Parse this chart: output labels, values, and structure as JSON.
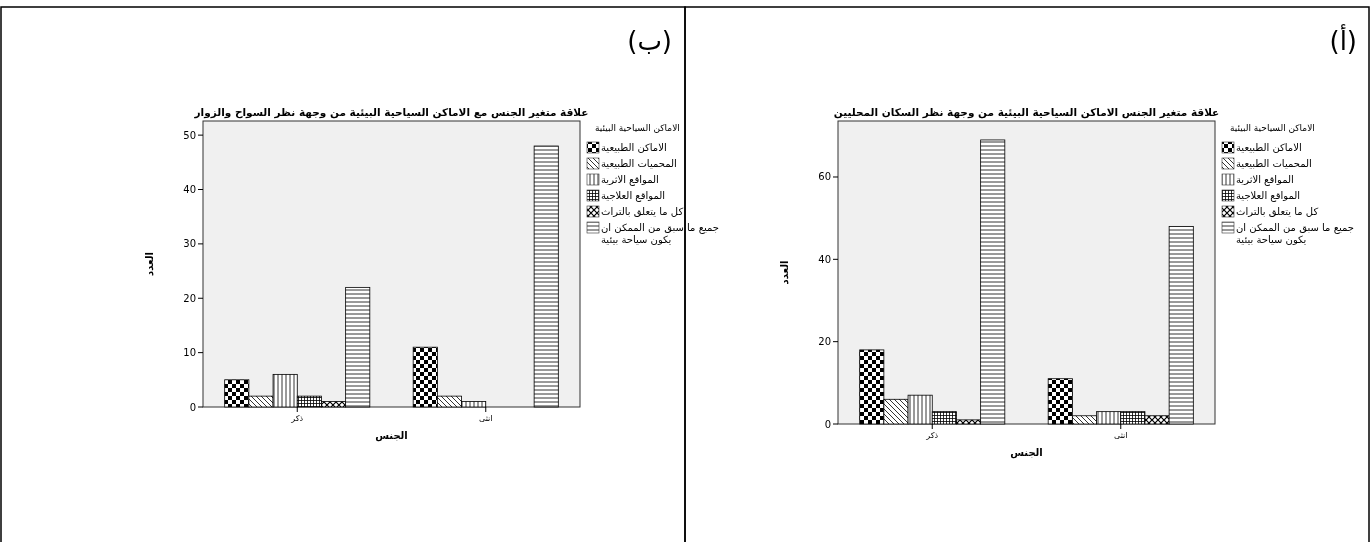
{
  "chart_data": [
    {
      "type": "bar",
      "title": "علاقة متغير الجنس الاماكن السياحية البيئية من وجهة نظر السكان المحليين",
      "xlabel": "الجنس",
      "ylabel": "العدد",
      "legend_title": "الاماكن السياحية البيئية",
      "annotations": [
        "(أ)"
      ],
      "legend": "right",
      "categories": [
        "ذكر",
        "انثى"
      ],
      "ylim": [
        0,
        73.6
      ],
      "yticks": [
        0,
        20,
        40,
        60
      ],
      "series": [
        {
          "name": "الاماكن الطبيعية",
          "color": "#000000",
          "values": [
            18,
            11
          ]
        },
        {
          "name": "المحميات الطبيعية",
          "color": "#000000",
          "values": [
            6,
            2
          ]
        },
        {
          "name": "المواقع الاثرية",
          "color": "#000000",
          "values": [
            7,
            3
          ]
        },
        {
          "name": "المواقع العلاجية",
          "color": "#000000",
          "values": [
            3,
            3
          ]
        },
        {
          "name": "كل ما يتعلق بالتراث",
          "color": "#000000",
          "values": [
            1,
            2
          ]
        },
        {
          "name": "جميع ما سبق من الممكن ان يكون سياحة بيئية",
          "color": "#000000",
          "values": [
            69,
            48
          ]
        }
      ]
    },
    {
      "type": "bar",
      "title": "علاقة متغير الجنس مع الاماكن السياحية البيئية من وجهة نظر السواح والزوار",
      "xlabel": "الجنس",
      "ylabel": "العدد",
      "legend_title": "الاماكن السياحية البيئية",
      "annotations": [
        "(ب)"
      ],
      "legend": "right",
      "categories": [
        "ذكر",
        "انثى"
      ],
      "ylim": [
        0,
        52.6
      ],
      "yticks": [
        0,
        10,
        20,
        30,
        40,
        50
      ],
      "series": [
        {
          "name": "الاماكن الطبيعية",
          "color": "#000000",
          "values": [
            5,
            11
          ]
        },
        {
          "name": "المحميات الطبيعية",
          "color": "#000000",
          "values": [
            2,
            2
          ]
        },
        {
          "name": "المواقع الاثرية",
          "color": "#000000",
          "values": [
            6,
            1
          ]
        },
        {
          "name": "المواقع العلاجية",
          "color": "#000000",
          "values": [
            2,
            0
          ]
        },
        {
          "name": "كل ما يتعلق بالتراث",
          "color": "#000000",
          "values": [
            1,
            0
          ]
        },
        {
          "name": "جميع ما سبق من الممكن ان يكون سياحة بيئية",
          "color": "#000000",
          "values": [
            22,
            48
          ]
        }
      ]
    }
  ]
}
